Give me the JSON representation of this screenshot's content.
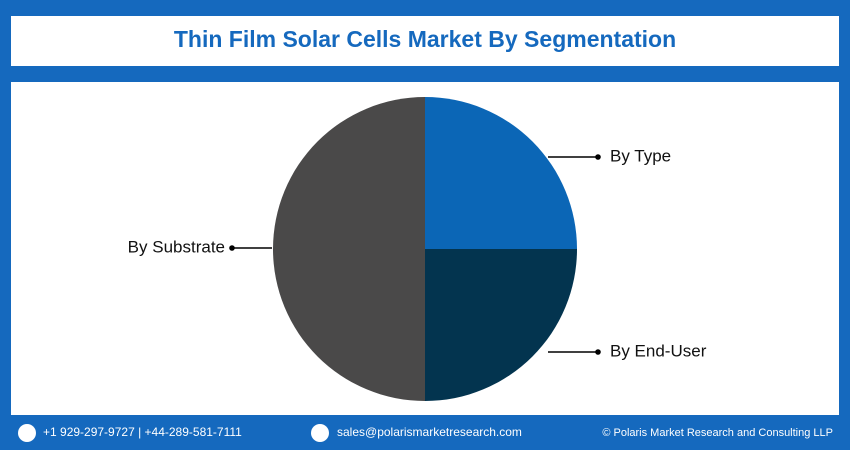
{
  "chart_data": {
    "type": "pie",
    "title": "Thin Film Solar Cells Market By Segmentation",
    "categories": [
      "By Type",
      "By End-User",
      "By Substrate"
    ],
    "values": [
      25,
      25,
      50
    ],
    "colors": [
      "#0b66b6",
      "#03344f",
      "#4a4949"
    ]
  },
  "footer": {
    "phone": "+1 929-297-9727 | +44-289-581-7111",
    "email": "sales@polarismarketresearch.com",
    "copyright": "© Polaris Market Research and Consulting LLP"
  }
}
